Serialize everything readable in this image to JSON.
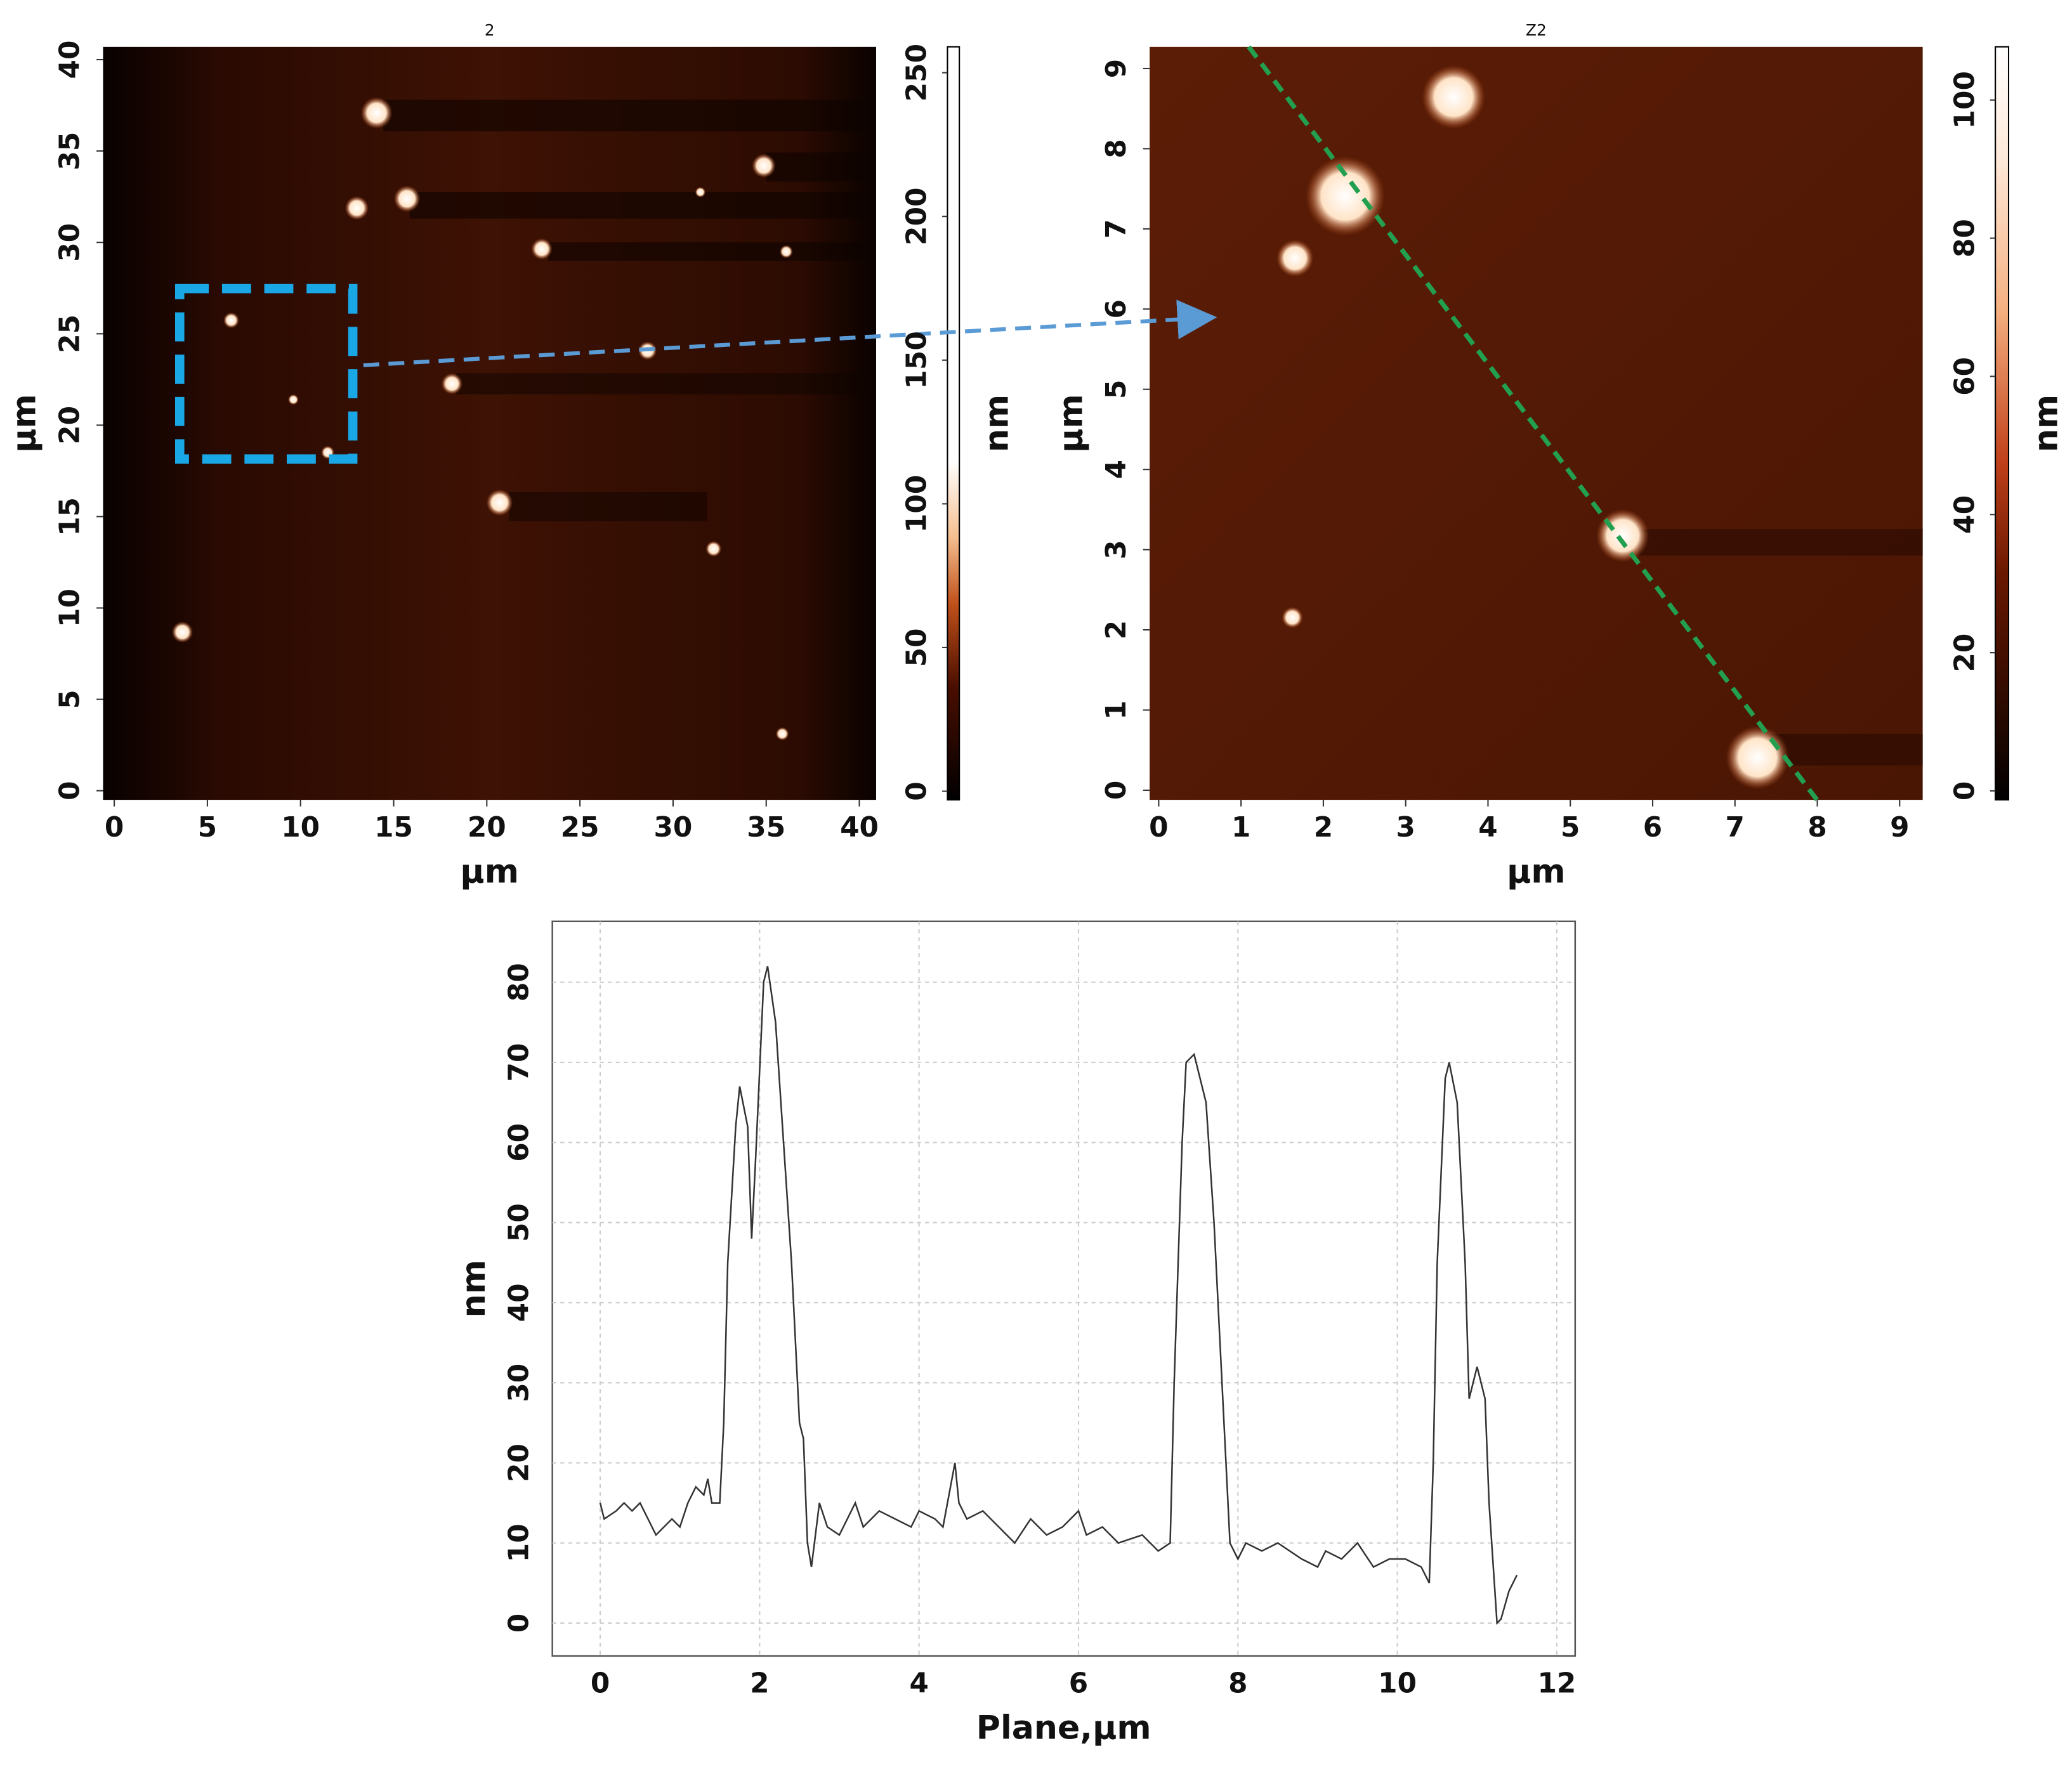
{
  "chart_data": [
    {
      "type": "image",
      "title": "2",
      "xlabel": "µm",
      "ylabel": "µm",
      "colorbar_label": "nm",
      "xlim": [
        -0.6,
        40.9
      ],
      "xticks": [
        0,
        5,
        10,
        15,
        20,
        25,
        30,
        35,
        40
      ],
      "ylim": [
        -0.5,
        40.7
      ],
      "yticks": [
        0,
        5,
        10,
        15,
        20,
        25,
        30,
        35,
        40
      ],
      "zlim": [
        -3,
        259
      ],
      "zticks": [
        0,
        50,
        100,
        150,
        200,
        250
      ]
    },
    {
      "type": "image",
      "title": "Z2",
      "xlabel": "µm",
      "ylabel": "µm",
      "colorbar_label": "nm",
      "xlim": [
        -0.11,
        9.28
      ],
      "xticks": [
        0,
        1,
        2,
        3,
        4,
        5,
        6,
        7,
        8,
        9
      ],
      "ylim": [
        -0.12,
        9.27
      ],
      "yticks": [
        0,
        1,
        2,
        3,
        4,
        5,
        6,
        7,
        8,
        9
      ],
      "zlim": [
        -1.3,
        107.7
      ],
      "zticks": [
        0,
        20,
        40,
        60,
        80,
        100
      ]
    },
    {
      "type": "line",
      "xlabel": "Plane,µm",
      "ylabel": "nm",
      "color": "#333333",
      "grid": true,
      "xlim": [
        -0.6,
        12.23
      ],
      "xticks": [
        0,
        2,
        4,
        6,
        8,
        10,
        12
      ],
      "ylim": [
        -4.1,
        87.6
      ],
      "yticks": [
        0,
        10,
        20,
        30,
        40,
        50,
        60,
        70,
        80
      ],
      "x": [
        0,
        0.05,
        0.2,
        0.3,
        0.4,
        0.5,
        0.6,
        0.7,
        0.8,
        0.9,
        1.0,
        1.1,
        1.2,
        1.3,
        1.35,
        1.4,
        1.5,
        1.55,
        1.6,
        1.7,
        1.75,
        1.85,
        1.9,
        1.95,
        2.05,
        2.1,
        2.2,
        2.3,
        2.4,
        2.5,
        2.55,
        2.6,
        2.65,
        2.75,
        2.85,
        3.0,
        3.2,
        3.3,
        3.5,
        3.7,
        3.9,
        4.0,
        4.2,
        4.3,
        4.45,
        4.5,
        4.6,
        4.8,
        5.0,
        5.2,
        5.4,
        5.6,
        5.8,
        6.0,
        6.1,
        6.3,
        6.5,
        6.8,
        7.0,
        7.15,
        7.2,
        7.3,
        7.35,
        7.45,
        7.6,
        7.7,
        7.8,
        7.9,
        8.0,
        8.1,
        8.3,
        8.5,
        8.8,
        9.0,
        9.1,
        9.3,
        9.5,
        9.7,
        9.9,
        10.1,
        10.3,
        10.4,
        10.45,
        10.5,
        10.6,
        10.65,
        10.75,
        10.85,
        10.9,
        10.95,
        11.0,
        11.1,
        11.15,
        11.25,
        11.3,
        11.4,
        11.5
      ],
      "values": [
        15,
        13,
        14,
        15,
        14,
        15,
        13,
        11,
        12,
        13,
        12,
        15,
        17,
        16,
        18,
        15,
        15,
        25,
        45,
        62,
        67,
        62,
        48,
        58,
        80,
        82,
        75,
        60,
        45,
        25,
        23,
        10,
        7,
        15,
        12,
        11,
        15,
        12,
        14,
        13,
        12,
        14,
        13,
        12,
        20,
        15,
        13,
        14,
        12,
        10,
        13,
        11,
        12,
        14,
        11,
        12,
        10,
        11,
        9,
        10,
        30,
        60,
        70,
        71,
        65,
        50,
        30,
        10,
        8,
        10,
        9,
        10,
        8,
        7,
        9,
        8,
        10,
        7,
        8,
        8,
        7,
        5,
        20,
        45,
        68,
        70,
        65,
        45,
        28,
        30,
        32,
        28,
        15,
        0,
        0.5,
        4,
        6
      ]
    }
  ]
}
